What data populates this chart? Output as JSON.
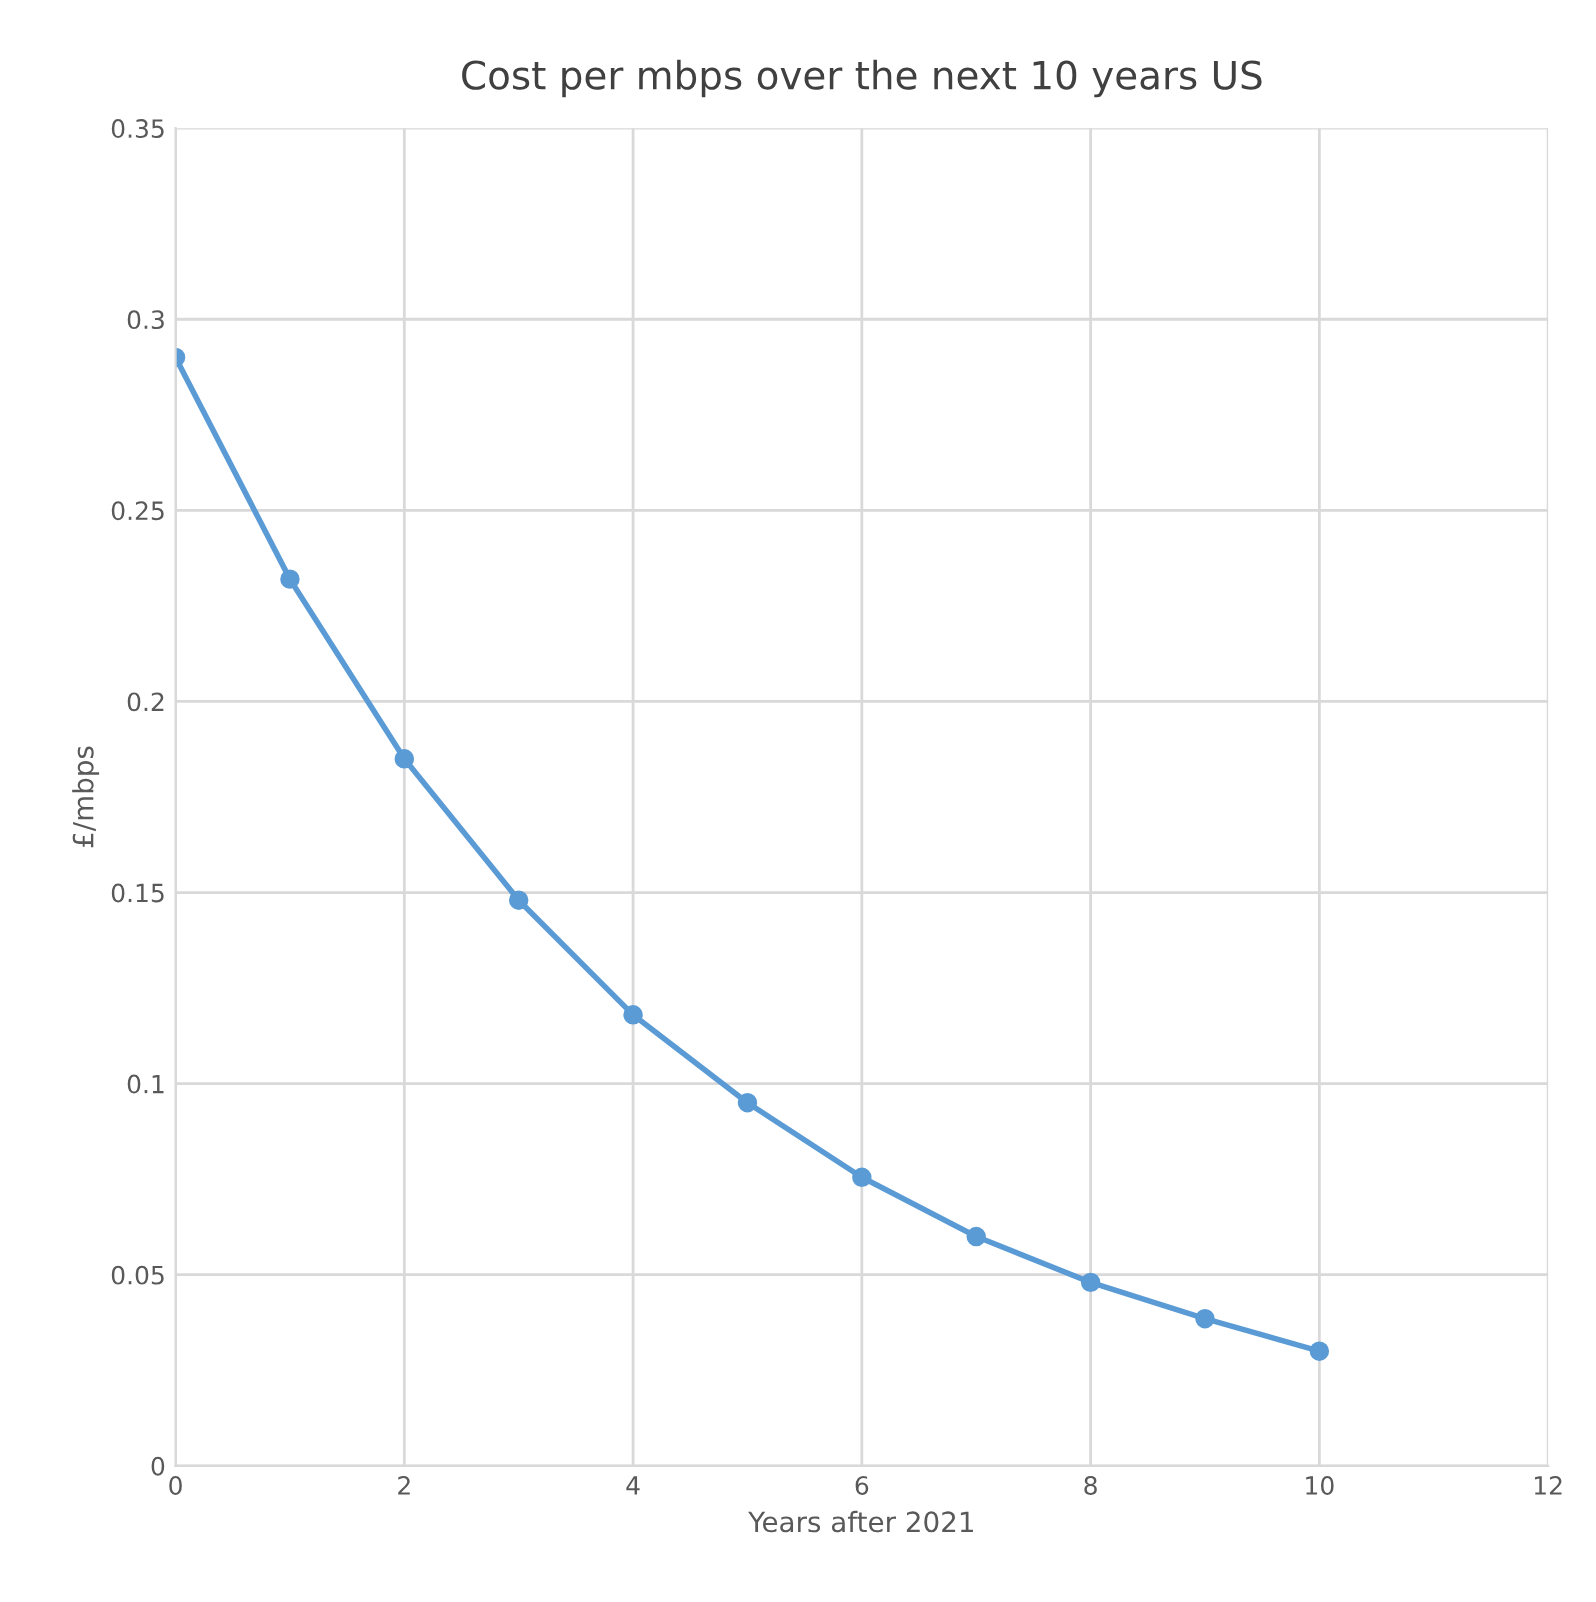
{
  "chart_data": {
    "type": "line",
    "title": "Cost per mbps over the next 10 years US",
    "xlabel": "Years after 2021",
    "ylabel": "£/mbps",
    "x": [
      0,
      1,
      2,
      3,
      4,
      5,
      6,
      7,
      8,
      9,
      10
    ],
    "series": [
      {
        "color": "#5b9bd5",
        "values": [
          0.29,
          0.232,
          0.185,
          0.148,
          0.118,
          0.095,
          0.0755,
          0.06,
          0.048,
          0.0385,
          0.03
        ]
      }
    ],
    "xlim": [
      0,
      12
    ],
    "xticks": [
      0,
      2,
      4,
      6,
      8,
      10,
      12
    ],
    "ylim": [
      0,
      0.35
    ],
    "yticks": [
      0,
      0.05,
      0.1,
      0.15,
      0.2,
      0.25,
      0.3,
      0.35
    ],
    "grid": true,
    "marker": "circle",
    "line_style": "solid",
    "legend": false
  }
}
